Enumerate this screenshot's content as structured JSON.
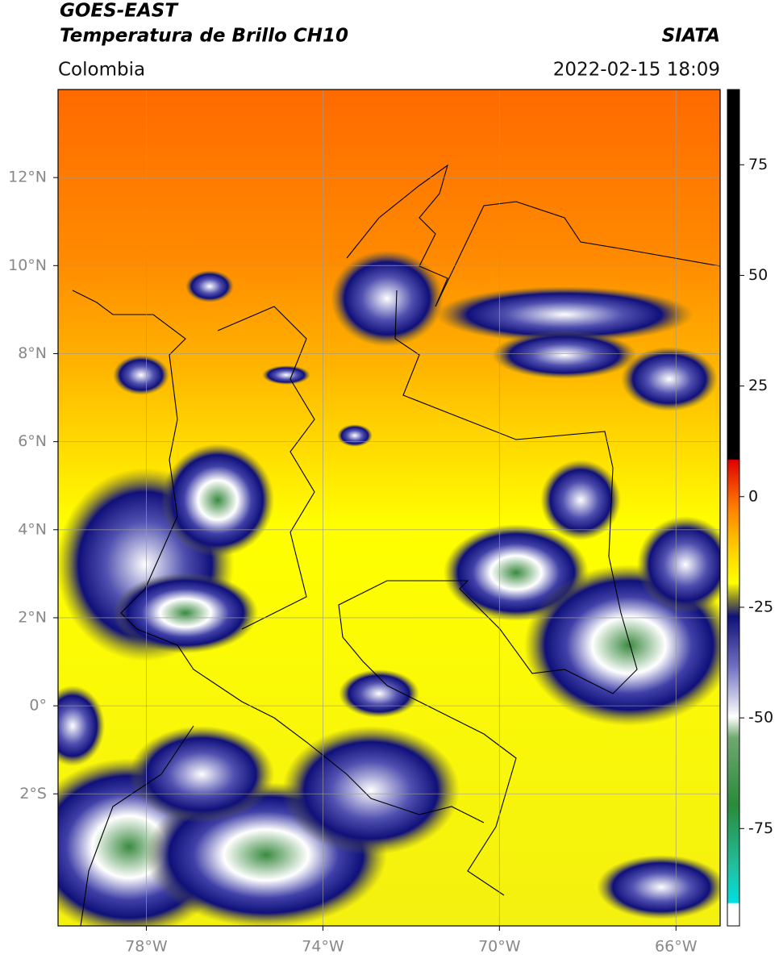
{
  "header": {
    "title": "GOES-EAST",
    "subtitle": "Temperatura de Brillo CH10",
    "region": "Colombia",
    "source": "SIATA",
    "datetime": "2022-02-15 18:09"
  },
  "map": {
    "xlim": [
      -80,
      -65
    ],
    "ylim": [
      -5,
      14
    ],
    "xticks": [
      {
        "value": -78,
        "label": "78°W"
      },
      {
        "value": -74,
        "label": "74°W"
      },
      {
        "value": -70,
        "label": "70°W"
      },
      {
        "value": -66,
        "label": "66°W"
      }
    ],
    "yticks": [
      {
        "value": -2,
        "label": "2°S"
      },
      {
        "value": 0,
        "label": "0°"
      },
      {
        "value": 2,
        "label": "2°N"
      },
      {
        "value": 4,
        "label": "4°N"
      },
      {
        "value": 6,
        "label": "6°N"
      },
      {
        "value": 8,
        "label": "8°N"
      },
      {
        "value": 10,
        "label": "10°N"
      },
      {
        "value": 12,
        "label": "12°N"
      }
    ],
    "grid": true
  },
  "colorbar": {
    "lim": [
      -97,
      92
    ],
    "ticks": [
      -75,
      -50,
      -25,
      0,
      25,
      50,
      75
    ]
  }
}
